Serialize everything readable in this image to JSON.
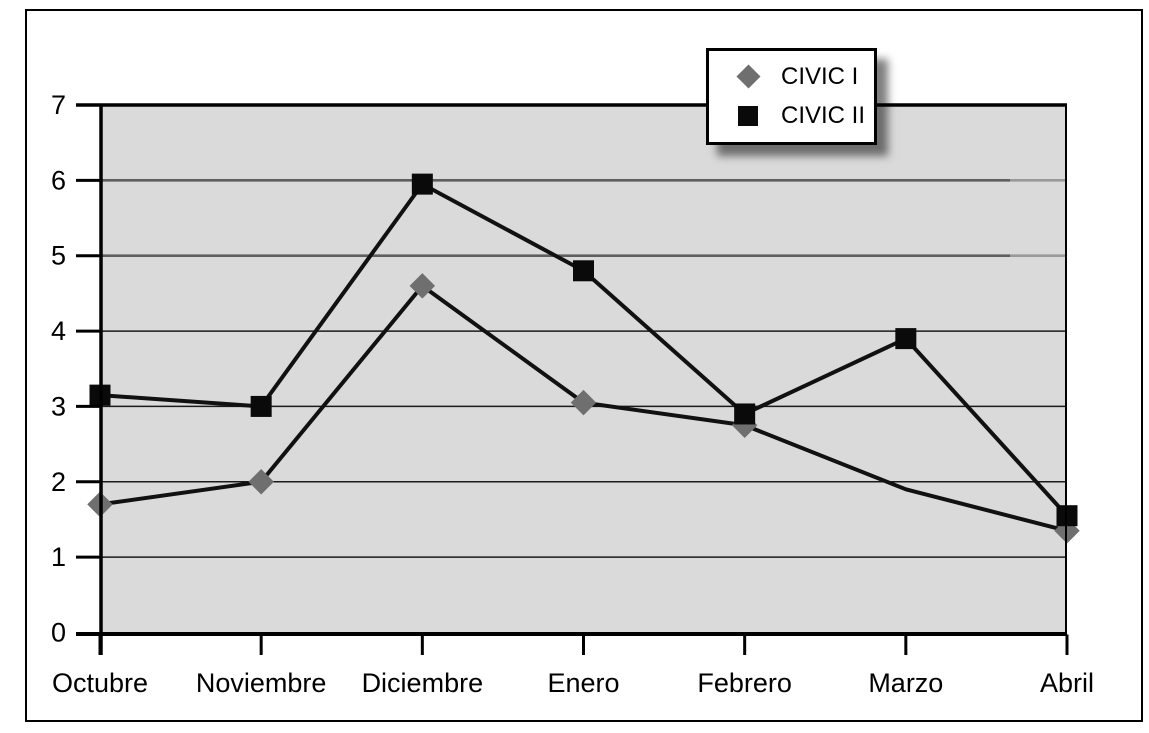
{
  "chart": {
    "legend": {
      "position": "top-right",
      "items": [
        {
          "label": "CIVIC I",
          "marker": "gray-diamond"
        },
        {
          "label": "CIVIC II",
          "marker": "black-square"
        }
      ]
    },
    "colors": {
      "plot_bg": "#dadada",
      "line": "#111111",
      "diamond": "#6f6f6f",
      "square": "#0a0a0a",
      "grid_minor": "#1a1a1a",
      "grid_emphasis": "#5f5f5f",
      "grid_emphasis_tail": "#999999",
      "axis": "#000000"
    }
  },
  "chart_data": {
    "type": "line",
    "title": "",
    "xlabel": "",
    "ylabel": "",
    "categories": [
      "Octubre",
      "Noviembre",
      "Diciembre",
      "Enero",
      "Febrero",
      "Marzo",
      "Abril"
    ],
    "series": [
      {
        "name": "CIVIC I",
        "marker": "diamond",
        "marker_color": "#6f6f6f",
        "line_color": "#111111",
        "values": [
          1.7,
          2.0,
          4.6,
          3.05,
          2.75,
          1.9,
          1.35
        ],
        "marker_visible": [
          true,
          true,
          true,
          true,
          true,
          false,
          true
        ]
      },
      {
        "name": "CIVIC II",
        "marker": "square",
        "marker_color": "#0a0a0a",
        "line_color": "#111111",
        "values": [
          3.15,
          3.0,
          5.95,
          4.8,
          2.9,
          3.9,
          1.55
        ],
        "marker_visible": [
          true,
          true,
          true,
          true,
          true,
          true,
          true
        ]
      }
    ],
    "y_axis": {
      "min": 0,
      "max": 7,
      "step": 1,
      "tick_labels": [
        "0",
        "1",
        "2",
        "3",
        "4",
        "5",
        "6",
        "7"
      ]
    },
    "ylim": [
      0,
      7
    ],
    "grid": true,
    "emphasized_gridlines": [
      5,
      6
    ],
    "legend_position": "top-right"
  }
}
